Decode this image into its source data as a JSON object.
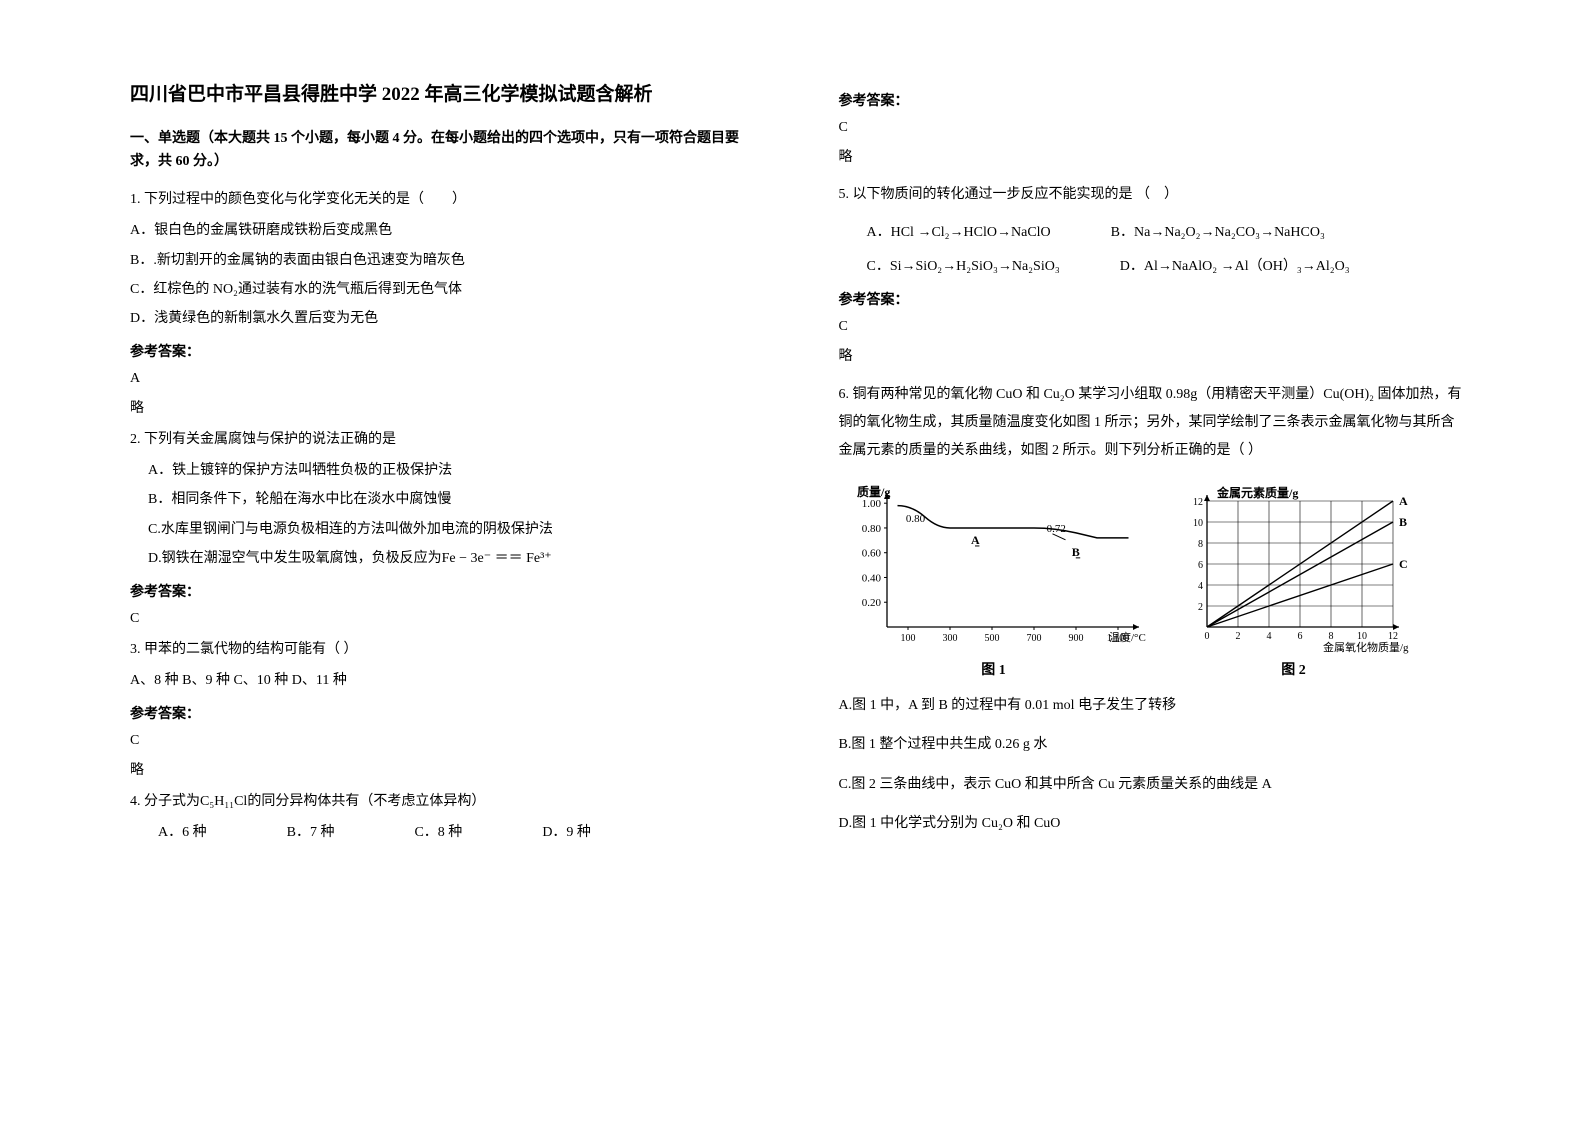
{
  "title": "四川省巴中市平昌县得胜中学 2022 年高三化学模拟试题含解析",
  "section1": "一、单选题（本大题共 15 个小题，每小题 4 分。在每小题给出的四个选项中，只有一项符合题目要求，共 60 分。）",
  "answerLabel": "参考答案：",
  "brief": "略",
  "q1": {
    "stem": "1. 下列过程中的颜色变化与化学变化无关的是（　　）",
    "A": "A．银白色的金属铁研磨成铁粉后变成黑色",
    "B": "B．.新切割开的金属钠的表面由银白色迅速变为暗灰色",
    "C": "C．红棕色的 NO₂通过装有水的洗气瓶后得到无色气体",
    "D": "D．浅黄绿色的新制氯水久置后变为无色",
    "ans": "A"
  },
  "q2": {
    "stem": "2. 下列有关金属腐蚀与保护的说法正确的是",
    "A": "A．铁上镀锌的保护方法叫牺牲负极的正极保护法",
    "B": "B．相同条件下，轮船在海水中比在淡水中腐蚀慢",
    "C": "C.水库里钢闸门与电源负极相连的方法叫做外加电流的阴极保护法",
    "D_pre": "D.钢铁在潮湿空气中发生吸氧腐蚀，负极反应为",
    "D_formula": "Fe − 3e⁻ ＝＝ Fe³⁺",
    "ans": "C"
  },
  "q3": {
    "stem": "3. 甲苯的二氯代物的结构可能有（ ）",
    "opts": " A、8 种  B、9 种  C、10 种  D、11 种",
    "ans": "C"
  },
  "q4": {
    "stem_pre": "4. 分子式为",
    "stem_formula": "C₅H₁₁Cl",
    "stem_post": "的同分异构体共有（不考虑立体异构）",
    "A": "A．6 种",
    "B": "B．7 种",
    "C": "C．8 种",
    "D": "D．9 种",
    "ans": "C"
  },
  "q5": {
    "stem": "5. 以下物质间的转化通过一步反应不能实现的是 （　）",
    "A": "A．HCl →Cl₂→HClO→NaClO",
    "B": "B．Na→Na₂O₂→Na₂CO₃→NaHCO₃",
    "C": "C．Si→SiO₂→H₂SiO₃→Na₂SiO₃",
    "D": "D．Al→NaAlO₂ →Al（OH）₃→Al₂O₃",
    "ans": "C"
  },
  "q6": {
    "stem": "6. 铜有两种常见的氧化物 CuO 和 Cu₂O 某学习小组取 0.98g（用精密天平测量）Cu(OH)₂ 固体加热，有铜的氧化物生成，其质量随温度变化如图 1 所示；另外，某同学绘制了三条表示金属氧化物与其所含金属元素的质量的关系曲线，如图 2 所示。则下列分析正确的是（  ）",
    "A": "A.图 1 中，A 到 B 的过程中有 0.01 mol 电子发生了转移",
    "B": "B.图 1 整个过程中共生成 0.26 g 水",
    "C": "C.图 2 三条曲线中，表示 CuO 和其中所含 Cu 元素质量关系的曲线是 A",
    "D": "D.图 1 中化学式分别为 Cu₂O 和 CuO"
  },
  "fig1": {
    "caption": "图 1",
    "ylabel": "质量/g",
    "xlabel": "温度/°C",
    "yticks": [
      "0.20",
      "0.40",
      "0.60",
      "0.80",
      "1.00"
    ],
    "xticks": [
      "100",
      "300",
      "500",
      "700",
      "900",
      "1 100"
    ],
    "points": {
      "start": 0.98,
      "A_y": 0.8,
      "B_y": 0.72,
      "A_label": "A",
      "B_label": "B",
      "A_line": "0.80",
      "B_line": "0.72"
    },
    "colors": {
      "axis": "#000000",
      "line": "#000000",
      "bg": "#ffffff"
    }
  },
  "fig2": {
    "caption": "图 2",
    "ylabel": "金属元素质量/g",
    "xlabel": "金属氧化物质量/g",
    "yticks": [
      "2",
      "4",
      "6",
      "8",
      "10",
      "12"
    ],
    "xticks": [
      "0",
      "2",
      "4",
      "6",
      "8",
      "10",
      "12"
    ],
    "lineLabels": [
      "A",
      "B",
      "C"
    ],
    "slopes": [
      1.0,
      0.833,
      0.5
    ],
    "colors": {
      "axis": "#000000",
      "grid": "#000000",
      "line": "#000000",
      "bg": "#ffffff"
    }
  }
}
